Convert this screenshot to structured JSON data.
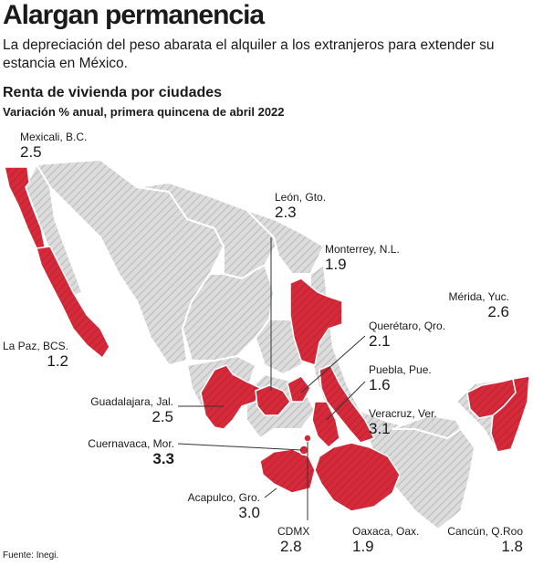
{
  "header": {
    "headline": "Alargan permanencia",
    "deck": "La depreciación del peso abarata el alquiler a los extranjeros para extender su estancia en México."
  },
  "chart": {
    "title": "Renta de vivienda por ciudades",
    "subtitle": "Variación % anual, primera quincena de abril 2022"
  },
  "source": "Fuente: Inegi.",
  "colors": {
    "highlight": "#d42a3a",
    "base": "#d9d9d9",
    "hatch": "#bdbdbd",
    "border": "#ffffff"
  },
  "chart_data": {
    "type": "map",
    "unit": "%",
    "cities": [
      {
        "city": "Mexicali, B.C.",
        "value": "2.5"
      },
      {
        "city": "La Paz, BCS.",
        "value": "1.2"
      },
      {
        "city": "León, Gto.",
        "value": "2.3"
      },
      {
        "city": "Monterrey, N.L.",
        "value": "1.9"
      },
      {
        "city": "Mérida, Yuc.",
        "value": "2.6"
      },
      {
        "city": "Querétaro, Qro.",
        "value": "2.1"
      },
      {
        "city": "Puebla, Pue.",
        "value": "1.6"
      },
      {
        "city": "Guadalajara, Jal.",
        "value": "2.5"
      },
      {
        "city": "Veracruz, Ver.",
        "value": "3.1"
      },
      {
        "city": "Cuernavaca, Mor.",
        "value": "3.3"
      },
      {
        "city": "Acapulco, Gro.",
        "value": "3.0"
      },
      {
        "city": "CDMX",
        "value": "2.8"
      },
      {
        "city": "Oaxaca, Oax.",
        "value": "1.9"
      },
      {
        "city": "Cancún, Q.Roo",
        "value": "1.8"
      }
    ]
  }
}
